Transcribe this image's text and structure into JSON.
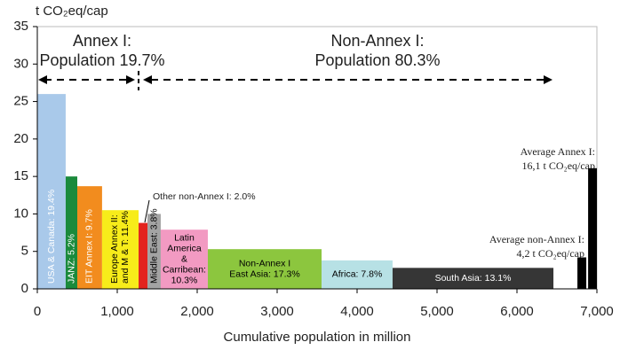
{
  "chart_data": {
    "type": "variable_width_bar",
    "y_axis_label": "t CO₂eq/cap",
    "x_axis_label": "Cumulative population in million",
    "xlim": [
      0,
      7000
    ],
    "xticks": [
      0,
      {
        "value": 1000,
        "label": "1,000"
      },
      {
        "value": 2000,
        "label": "2,000"
      },
      {
        "value": 3000,
        "label": "3,000"
      },
      {
        "value": 4000,
        "label": "4,000"
      },
      {
        "value": 5000,
        "label": "5,000"
      },
      {
        "value": 6000,
        "label": "6,000"
      },
      {
        "value": 7000,
        "label": "7,000"
      }
    ],
    "ylim": [
      0,
      35
    ],
    "yticks": [
      0,
      5,
      10,
      15,
      20,
      25,
      30,
      35
    ],
    "bars": [
      {
        "label": [
          "USA & Canada: 19.4%"
        ],
        "x_start": 0,
        "x_end": 355,
        "value": 26,
        "color": "#a9c9ea",
        "label_color": "#ffffff"
      },
      {
        "label": [
          "JANZ: 5.2%"
        ],
        "x_start": 355,
        "x_end": 500,
        "value": 15,
        "color": "#1b8a3c",
        "label_color": "#ffffff"
      },
      {
        "label": [
          "EIT Annex I: 9.7%"
        ],
        "x_start": 500,
        "x_end": 810,
        "value": 13.7,
        "color": "#f28c1e",
        "label_color": "#ffffff"
      },
      {
        "label": [
          "Europe Annex II:",
          "and M & T: 11.4%"
        ],
        "x_start": 810,
        "x_end": 1267,
        "value": 10.5,
        "color": "#f7ec1a",
        "label_color": "#000000"
      },
      {
        "label": [],
        "x_start": 1267,
        "x_end": 1378,
        "value": 8.8,
        "color": "#e3231e",
        "label_color": "#000000"
      },
      {
        "label": [
          "Middle East: 3.8%"
        ],
        "x_start": 1378,
        "x_end": 1544,
        "value": 10,
        "color": "#a3a3a3",
        "label_color": "#000000"
      },
      {
        "label": [
          "Latin",
          "America",
          "&",
          "Carribean:",
          "10.3%"
        ],
        "x_start": 1544,
        "x_end": 2133,
        "value": 7.9,
        "color": "#f29ac2",
        "label_color": "#000000"
      },
      {
        "label": [
          "Non-Annex I",
          "East Asia: 17.3%"
        ],
        "x_start": 2133,
        "x_end": 3556,
        "value": 5.3,
        "color": "#8cc63e",
        "label_color": "#000000"
      },
      {
        "label": [
          "Africa: 7.8%"
        ],
        "x_start": 3556,
        "x_end": 4444,
        "value": 3.8,
        "color": "#b7e1e5",
        "label_color": "#000000"
      },
      {
        "label": [
          "South Asia: 13.1%"
        ],
        "x_start": 4444,
        "x_end": 6456,
        "value": 2.8,
        "color": "#363636",
        "label_color": "#ffffff"
      },
      {
        "label": [],
        "x_start": 6756,
        "x_end": 6867,
        "value": 4.2,
        "color": "#000000",
        "label_color": "#000000"
      },
      {
        "label": [],
        "x_start": 6890,
        "x_end": 7000,
        "value": 16.1,
        "color": "#000000",
        "label_color": "#000000"
      }
    ],
    "annotations": {
      "annex_group": [
        "Annex I:",
        "Population 19.7%"
      ],
      "non_annex_group": [
        "Non-Annex I:",
        "Population 80.3%"
      ],
      "other_non_annex": "Other non-Annex I: 2.0%",
      "average_annex": [
        "Average Annex I:",
        "16,1 t CO₂eq/cap"
      ],
      "average_non_annex": [
        "Average non-Annex I:",
        "4,2 t CO₂eq/cap"
      ]
    }
  }
}
